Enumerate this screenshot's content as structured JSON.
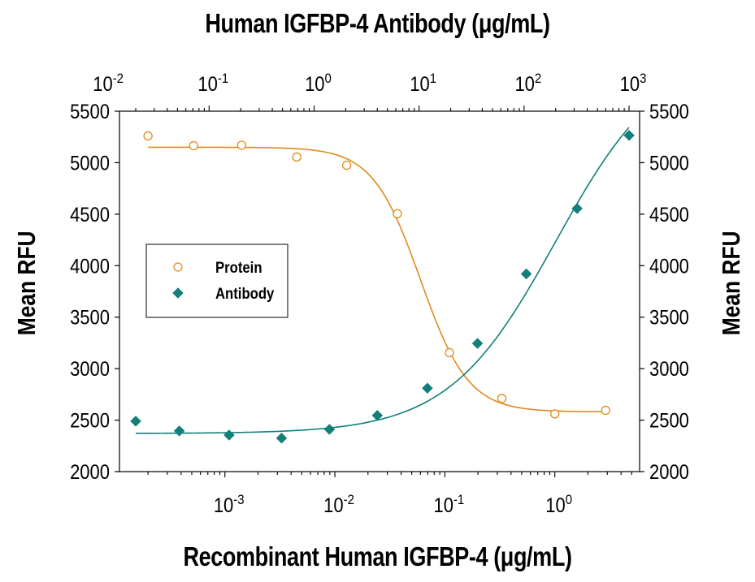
{
  "chart_data": {
    "type": "scatter",
    "x_axis_top": {
      "label": "Human IGFBP-4 Antibody (μg/mL)",
      "scale": "log",
      "range": [
        0.014,
        1260
      ],
      "tick_labels": [
        "10-2",
        "10-1",
        "100",
        "101",
        "102",
        "103"
      ],
      "tick_values": [
        0.01,
        0.1,
        1,
        10,
        100,
        1000
      ]
    },
    "x_axis_bottom": {
      "label": "Recombinant Human IGFBP-4 (μg/mL)",
      "scale": "log",
      "range": [
        0.00011,
        5.9
      ],
      "tick_labels": [
        "10-3",
        "10-2",
        "10-1",
        "100"
      ],
      "tick_values": [
        0.001,
        0.01,
        0.1,
        1
      ]
    },
    "y_axis": {
      "label": "Mean RFU",
      "range": [
        2000,
        5500
      ],
      "ticks": [
        2000,
        2500,
        3000,
        3500,
        4000,
        4500,
        5000,
        5500
      ]
    },
    "legend": {
      "placement": "left-middle"
    },
    "series": [
      {
        "name": "Protein",
        "axis": "bottom",
        "marker": "open-circle",
        "color": "#E08A1C",
        "points": [
          {
            "x": 0.0002,
            "y": 5260
          },
          {
            "x": 0.00052,
            "y": 5165
          },
          {
            "x": 0.00142,
            "y": 5170
          },
          {
            "x": 0.0045,
            "y": 5055
          },
          {
            "x": 0.0128,
            "y": 4975
          },
          {
            "x": 0.037,
            "y": 4505
          },
          {
            "x": 0.11,
            "y": 3155
          },
          {
            "x": 0.33,
            "y": 2710
          },
          {
            "x": 1.0,
            "y": 2560
          },
          {
            "x": 2.9,
            "y": 2595
          }
        ],
        "fit": {
          "top": 5150,
          "bottom": 2580,
          "ec50": 0.06,
          "hill": 2.0
        }
      },
      {
        "name": "Antibody",
        "axis": "top",
        "marker": "filled-diamond",
        "color": "#137F7A",
        "points": [
          {
            "x": 0.02,
            "y": 2490
          },
          {
            "x": 0.052,
            "y": 2395
          },
          {
            "x": 0.155,
            "y": 2355
          },
          {
            "x": 0.49,
            "y": 2325
          },
          {
            "x": 1.4,
            "y": 2410
          },
          {
            "x": 4.0,
            "y": 2545
          },
          {
            "x": 12.0,
            "y": 2810
          },
          {
            "x": 36.0,
            "y": 3245
          },
          {
            "x": 105.0,
            "y": 3920
          },
          {
            "x": 320.0,
            "y": 4555
          },
          {
            "x": 1000.0,
            "y": 5265
          }
        ],
        "fit": {
          "top": 6100,
          "bottom": 2370,
          "ec50": 200,
          "hill": 0.85
        }
      }
    ]
  }
}
